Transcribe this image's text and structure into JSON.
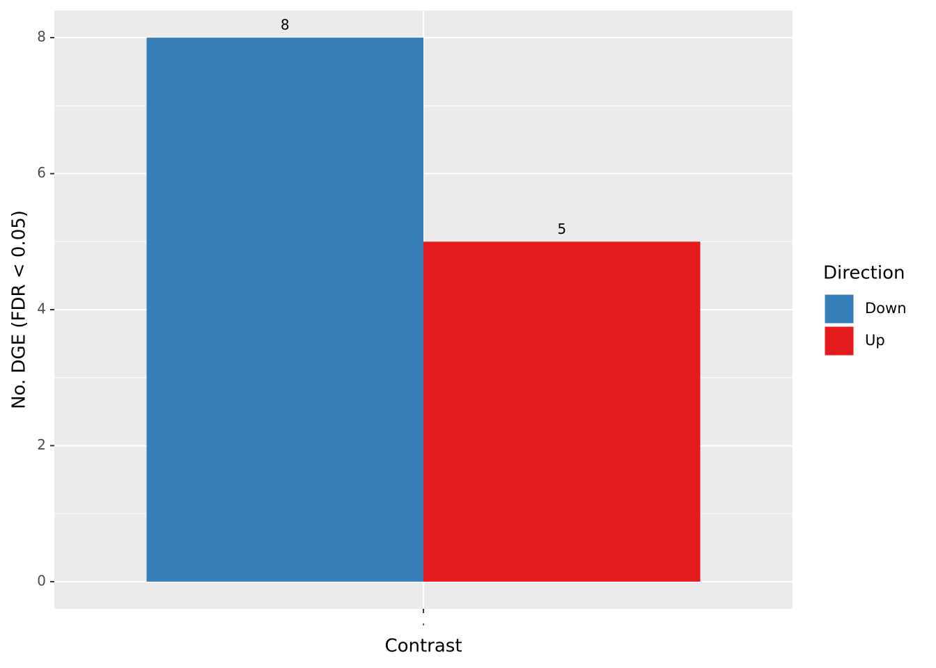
{
  "chart_data": {
    "type": "bar",
    "x_label": "Contrast",
    "y_label": "No. DGE (FDR < 0.05)",
    "categories": [
      "."
    ],
    "series": [
      {
        "name": "Down",
        "color": "#377eb8",
        "values": [
          8
        ]
      },
      {
        "name": "Up",
        "color": "#e41a1c",
        "values": [
          5
        ]
      }
    ],
    "legend_title": "Direction",
    "legend_position": "right",
    "ylim": [
      -0.4,
      8.4
    ],
    "yticks": [
      0,
      2,
      4,
      6,
      8
    ],
    "yminor": [
      1,
      3,
      5,
      7
    ],
    "grid": true
  }
}
